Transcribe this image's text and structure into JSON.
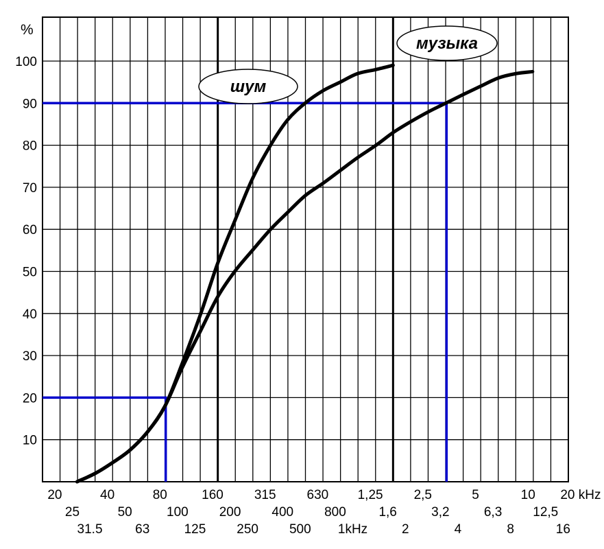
{
  "chart_data": {
    "type": "line",
    "y_unit": "%",
    "ylim": [
      0,
      100
    ],
    "y_ticks": [
      "10",
      "20",
      "30",
      "40",
      "50",
      "60",
      "70",
      "80",
      "90",
      "100"
    ],
    "x_scale": "log",
    "x_unit": "Hz",
    "xlim": [
      20,
      20000
    ],
    "x_tick_rows": [
      [
        "20",
        "40",
        "80",
        "160",
        "315",
        "630",
        "1,25",
        "2,5",
        "5",
        "10",
        "20 kHz"
      ],
      [
        "25",
        "50",
        "100",
        "200",
        "400",
        "800",
        "1,6",
        "3,2",
        "6,3",
        "12,5"
      ],
      [
        "31.5",
        "63",
        "125",
        "250",
        "500",
        "1kHz",
        "2",
        "4",
        "8",
        "16"
      ]
    ],
    "grid": true,
    "series": [
      {
        "name": "шум",
        "x": [
          31.5,
          40,
          50,
          63,
          80,
          100,
          125,
          160,
          200,
          250,
          315,
          400,
          500,
          630,
          800,
          1000,
          1250,
          1600,
          2000
        ],
        "y": [
          0,
          2,
          4.5,
          7.5,
          12,
          18,
          28,
          40,
          52,
          62,
          72,
          80,
          86,
          90,
          93,
          95,
          97,
          98,
          99
        ]
      },
      {
        "name": "музыка",
        "x": [
          31.5,
          40,
          50,
          63,
          80,
          100,
          125,
          160,
          200,
          250,
          315,
          400,
          500,
          630,
          800,
          1000,
          1250,
          1600,
          2000,
          2500,
          3200,
          4000,
          5000,
          6300,
          8000,
          10000,
          12500
        ],
        "y": [
          0,
          2,
          4.5,
          7.5,
          12,
          18,
          27,
          36,
          44,
          50,
          55,
          60,
          64,
          68,
          71,
          74,
          77,
          80,
          83,
          85.5,
          88,
          90,
          92,
          94,
          96,
          97,
          97.5
        ]
      }
    ],
    "reference_lines": [
      {
        "x": 100,
        "y": 20
      },
      {
        "x": 4000,
        "y": 90
      }
    ],
    "colors": {
      "curve": "#000000",
      "reference": "#0000cc",
      "grid": "#000000"
    }
  }
}
